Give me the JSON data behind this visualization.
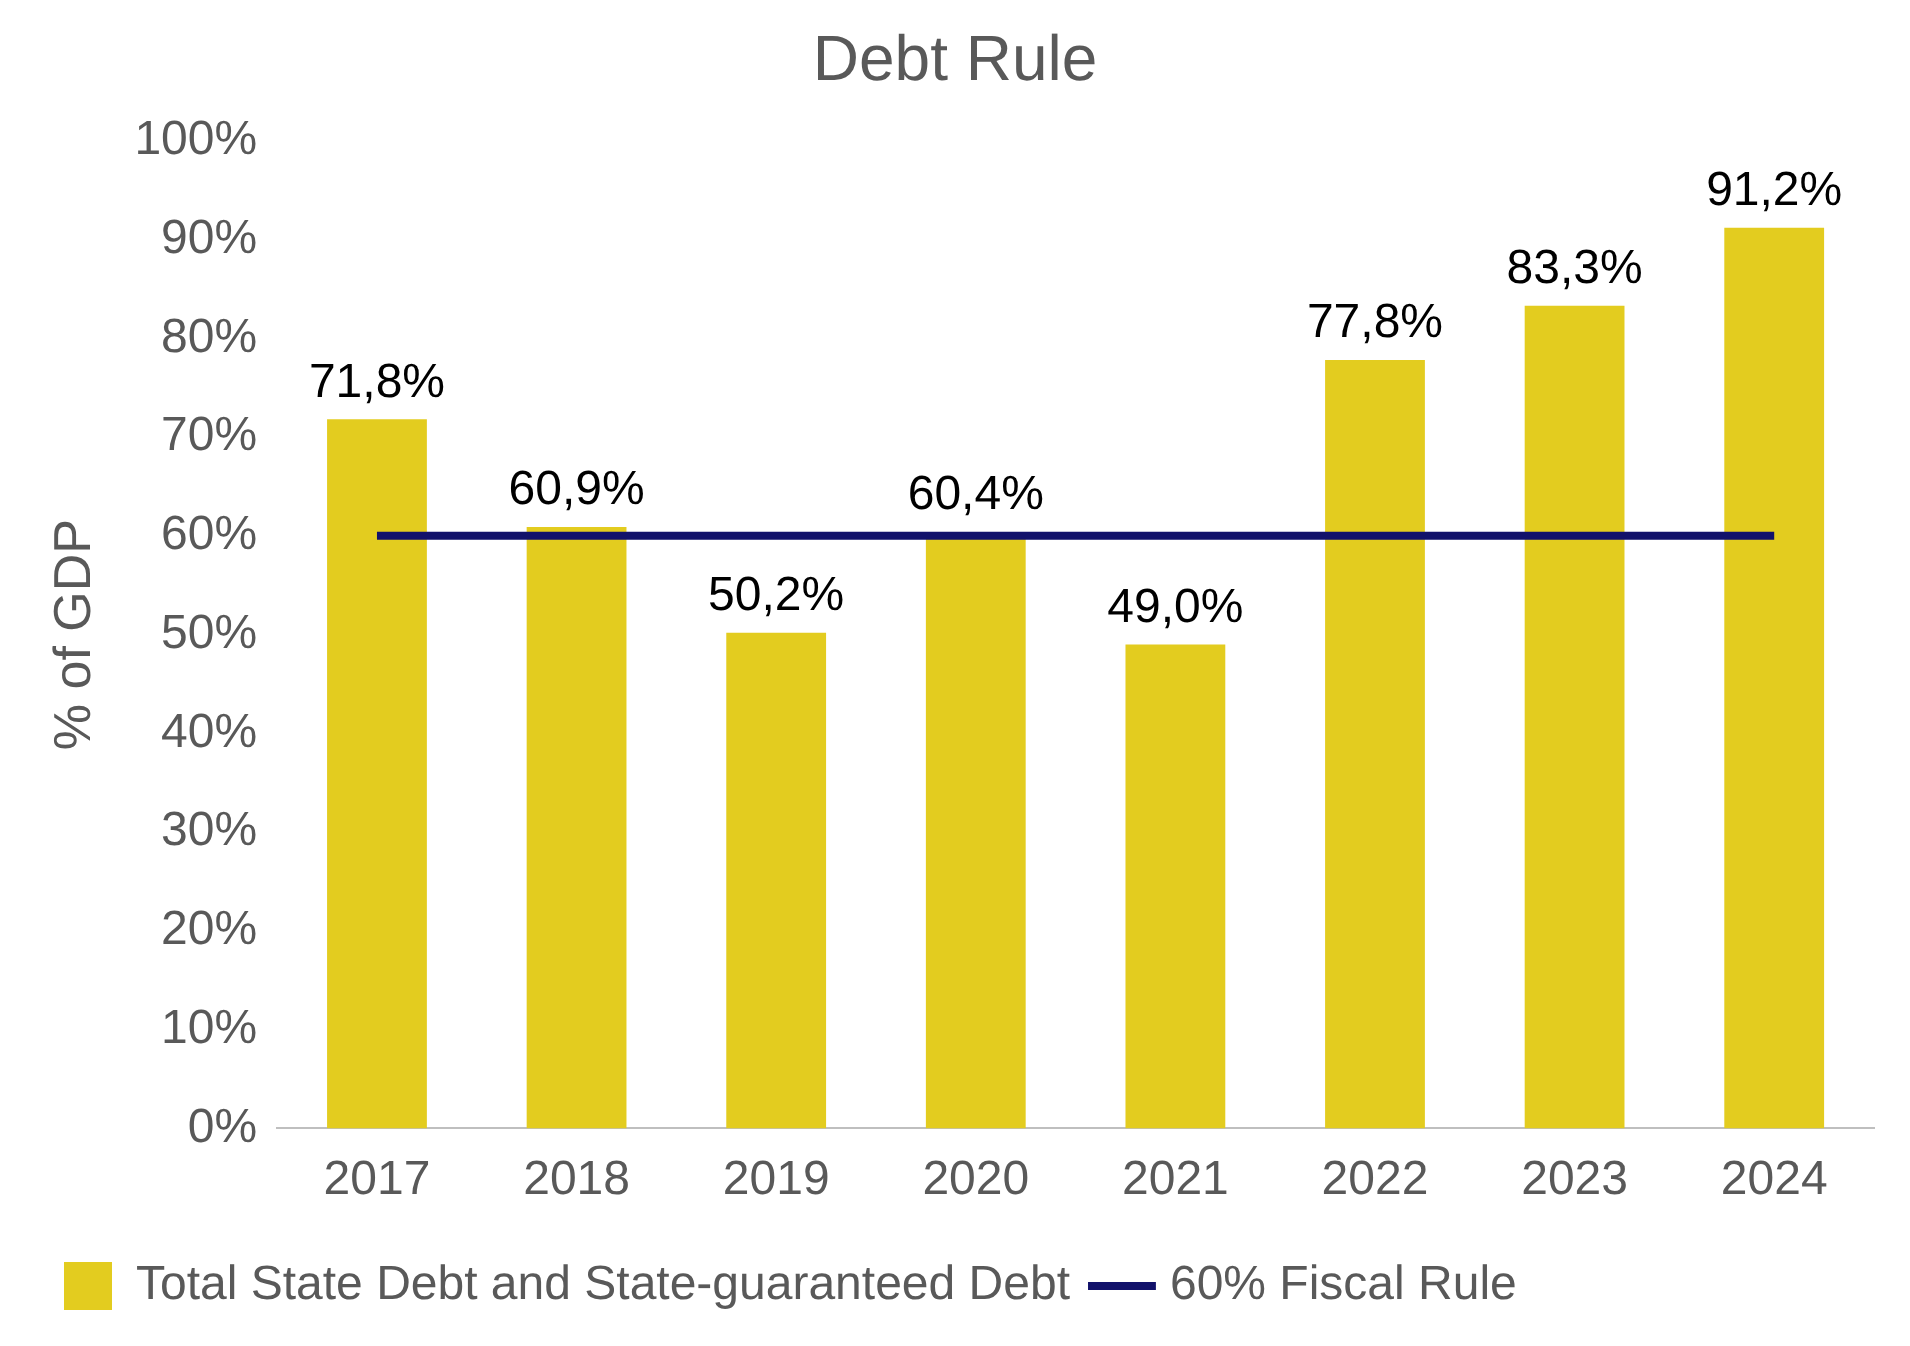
{
  "chart_data": {
    "type": "bar",
    "title": "Debt Rule",
    "ylabel": "% of GDP",
    "categories": [
      "2017",
      "2018",
      "2019",
      "2020",
      "2021",
      "2022",
      "2023",
      "2024"
    ],
    "series": [
      {
        "name": "Total State Debt and State-guaranteed Debt",
        "color": "#e3cc1f",
        "values": [
          71.8,
          60.9,
          50.2,
          60.4,
          49.0,
          77.8,
          83.3,
          91.2
        ],
        "value_labels": [
          "71,8%",
          "60,9%",
          "50,2%",
          "60,4%",
          "49,0%",
          "77,8%",
          "83,3%",
          "91,2%"
        ]
      },
      {
        "name": "60% Fiscal Rule",
        "type": "line",
        "color": "#12126b",
        "values": [
          60,
          60,
          60,
          60,
          60,
          60,
          60,
          60
        ],
        "marker": "none",
        "line_style": "solid"
      }
    ],
    "ylim": [
      0,
      100
    ],
    "yticks": [
      {
        "value": 0,
        "label": "0%"
      },
      {
        "value": 10,
        "label": "10%"
      },
      {
        "value": 20,
        "label": "20%"
      },
      {
        "value": 30,
        "label": "30%"
      },
      {
        "value": 40,
        "label": "40%"
      },
      {
        "value": 50,
        "label": "50%"
      },
      {
        "value": 60,
        "label": "60%"
      },
      {
        "value": 70,
        "label": "70%"
      },
      {
        "value": 80,
        "label": "80%"
      },
      {
        "value": 90,
        "label": "90%"
      },
      {
        "value": 100,
        "label": "100%"
      }
    ],
    "grid": false,
    "legend": "bottom"
  }
}
